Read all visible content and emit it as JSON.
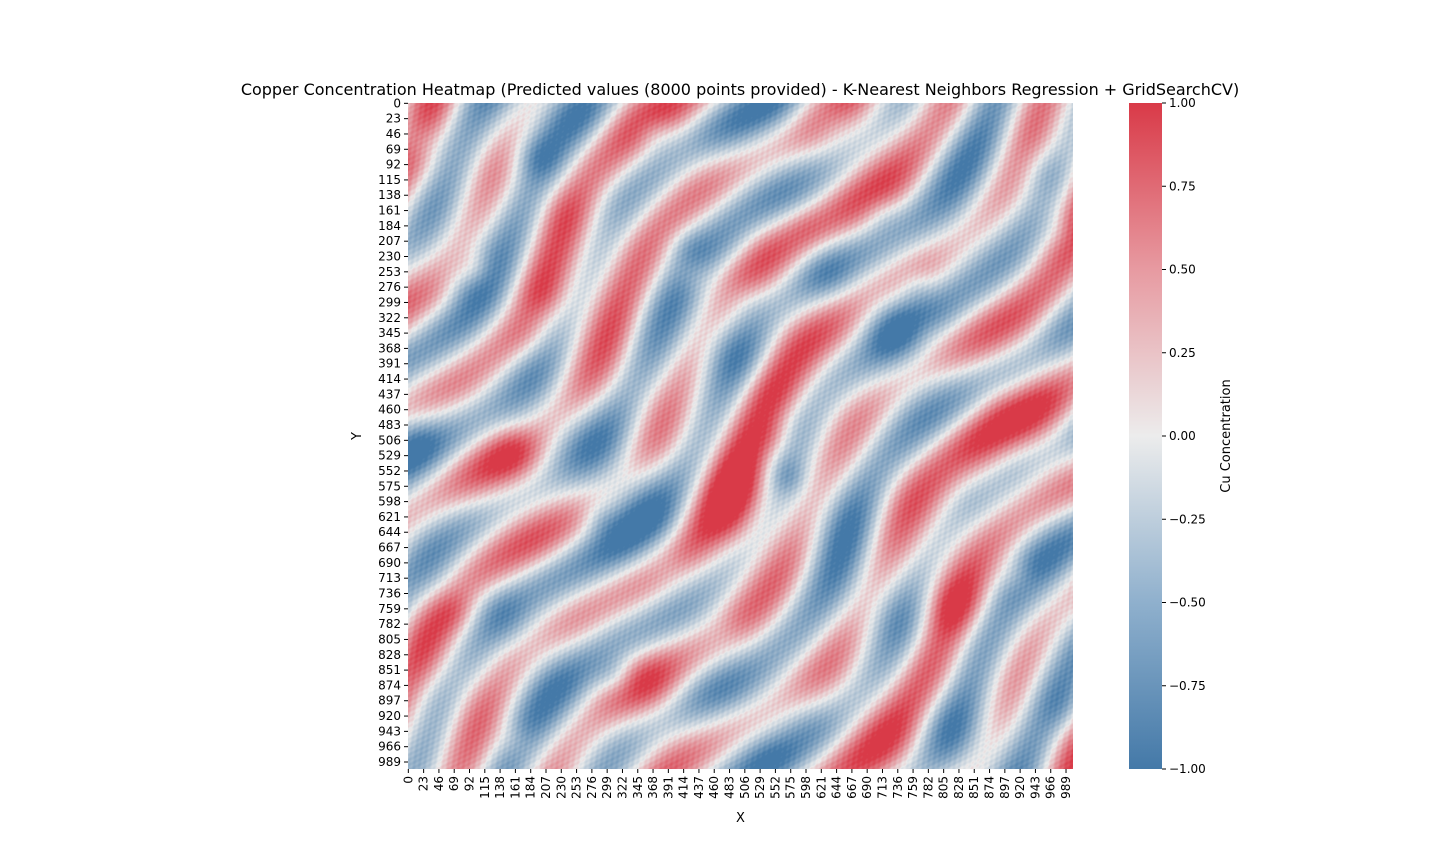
{
  "figure": {
    "title": "Copper Concentration Heatmap (Predicted values (8000 points provided) - K-Nearest Neighbors Regression + GridSearchCV)"
  },
  "chart_data": {
    "type": "heatmap",
    "title": "Copper Concentration Heatmap (Predicted values (8000 points provided) - K-Nearest Neighbors Regression + GridSearchCV)",
    "xlabel": "X",
    "ylabel": "Y",
    "x_ticks": [
      "0",
      "23",
      "46",
      "69",
      "92",
      "115",
      "138",
      "161",
      "184",
      "207",
      "230",
      "253",
      "276",
      "299",
      "322",
      "345",
      "368",
      "391",
      "414",
      "437",
      "460",
      "483",
      "506",
      "529",
      "552",
      "575",
      "598",
      "621",
      "644",
      "667",
      "690",
      "713",
      "736",
      "759",
      "782",
      "805",
      "828",
      "851",
      "874",
      "897",
      "920",
      "943",
      "966",
      "989"
    ],
    "y_ticks": [
      "0",
      "23",
      "46",
      "69",
      "92",
      "115",
      "138",
      "161",
      "184",
      "207",
      "230",
      "253",
      "276",
      "299",
      "322",
      "345",
      "368",
      "391",
      "414",
      "437",
      "460",
      "483",
      "506",
      "529",
      "552",
      "575",
      "598",
      "621",
      "644",
      "667",
      "690",
      "713",
      "736",
      "759",
      "782",
      "805",
      "828",
      "851",
      "874",
      "897",
      "920",
      "943",
      "966",
      "989"
    ],
    "xlim": [
      0,
      1000
    ],
    "ylim": [
      0,
      1000
    ],
    "y_axis_inverted": true,
    "colorbar": {
      "label": "Cu Concentration",
      "range": [
        -1.0,
        1.0
      ],
      "ticks": [
        "1.00",
        "0.75",
        "0.50",
        "0.25",
        "0.00",
        "−0.25",
        "−0.50",
        "−0.75",
        "−1.00"
      ],
      "colormap": "diverging blue-white-red",
      "color_low": "#4479a8",
      "color_mid": "#ececec",
      "color_high": "#d93a48"
    },
    "grid": false,
    "legend": "none",
    "value_pattern": "banded diagonal stripes running from upper-left to lower-right, alternating positive (red) and negative (blue) concentrations between -1.00 and 1.00"
  }
}
